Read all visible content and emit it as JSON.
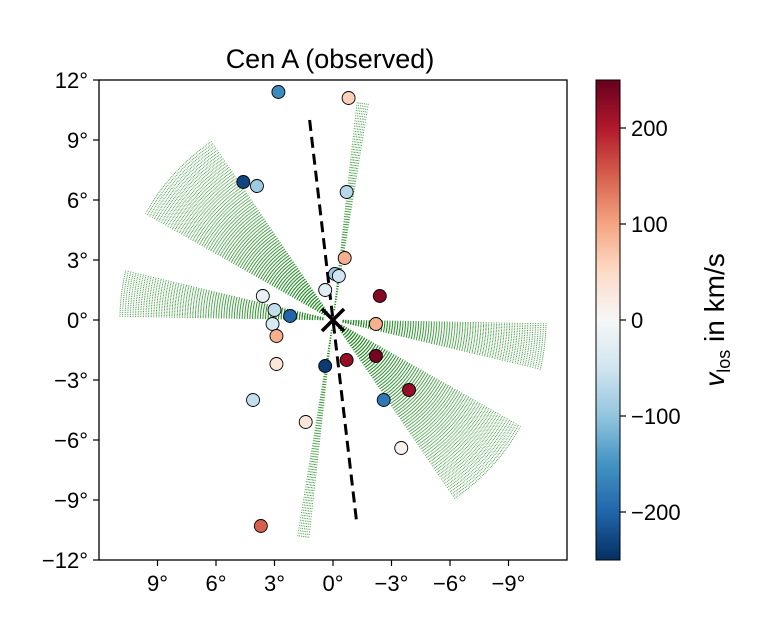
{
  "chart_data": {
    "type": "scatter",
    "title": "Cen A (observed)",
    "xlim": [
      12,
      -12
    ],
    "ylim": [
      -12,
      12
    ],
    "x_ticks": [
      {
        "value": 9,
        "label": "9°"
      },
      {
        "value": 6,
        "label": "6°"
      },
      {
        "value": 3,
        "label": "3°"
      },
      {
        "value": 0,
        "label": "0°"
      },
      {
        "value": -3,
        "label": "−3°"
      },
      {
        "value": -6,
        "label": "−6°"
      },
      {
        "value": -9,
        "label": "−9°"
      }
    ],
    "y_ticks": [
      {
        "value": 12,
        "label": "12°"
      },
      {
        "value": 9,
        "label": "9°"
      },
      {
        "value": 6,
        "label": "6°"
      },
      {
        "value": 3,
        "label": "3°"
      },
      {
        "value": 0,
        "label": "0°"
      },
      {
        "value": -3,
        "label": "−3°"
      },
      {
        "value": -6,
        "label": "−6°"
      },
      {
        "value": -9,
        "label": "−9°"
      },
      {
        "value": -12,
        "label": "−12°"
      }
    ],
    "grid": false,
    "colorbar": {
      "label_main": "v",
      "label_sub": "los",
      "label_rest": " in km/s",
      "vmin": -250,
      "vmax": 250,
      "colormap": "RdBu_r",
      "ticks": [
        {
          "value": 200,
          "label": "200"
        },
        {
          "value": 100,
          "label": "100"
        },
        {
          "value": 0,
          "label": "0"
        },
        {
          "value": -100,
          "label": "−100"
        },
        {
          "value": -200,
          "label": "−200"
        }
      ]
    },
    "center_marker": {
      "x": 0,
      "y": 0,
      "symbol": "×"
    },
    "major_axis_line": {
      "x": [
        1.2,
        -1.2
      ],
      "y": [
        10,
        -10
      ],
      "style": "dashed",
      "color": "#000000"
    },
    "fans": [
      {
        "center_angle_deg": 42,
        "half_width_deg": 13,
        "r_in": 0.5,
        "r_out": 11,
        "direction": "both",
        "color": "#228B22"
      },
      {
        "center_angle_deg": 7,
        "half_width_deg": 6,
        "r_in": 0.5,
        "r_out": 11,
        "direction": "both",
        "color": "#228B22"
      },
      {
        "center_angle_deg": 98,
        "half_width_deg": 1.5,
        "r_in": 0.5,
        "r_out": 11,
        "direction": "both",
        "color": "#228B22"
      }
    ],
    "points": [
      {
        "x": 2.8,
        "y": 11.4,
        "v": -160
      },
      {
        "x": -0.8,
        "y": 11.1,
        "v": 60
      },
      {
        "x": 4.6,
        "y": 6.9,
        "v": -230
      },
      {
        "x": 3.9,
        "y": 6.7,
        "v": -90
      },
      {
        "x": -0.7,
        "y": 6.4,
        "v": -70
      },
      {
        "x": -0.6,
        "y": 3.1,
        "v": 90
      },
      {
        "x": -0.1,
        "y": 2.3,
        "v": -90
      },
      {
        "x": -0.3,
        "y": 2.2,
        "v": -50
      },
      {
        "x": 0.4,
        "y": 1.5,
        "v": -30
      },
      {
        "x": 3.6,
        "y": 1.2,
        "v": -20
      },
      {
        "x": -2.4,
        "y": 1.2,
        "v": 230
      },
      {
        "x": 3.0,
        "y": 0.5,
        "v": -60
      },
      {
        "x": 2.2,
        "y": 0.2,
        "v": -200
      },
      {
        "x": 3.1,
        "y": -0.2,
        "v": -40
      },
      {
        "x": -2.2,
        "y": -0.2,
        "v": 90
      },
      {
        "x": 2.9,
        "y": -0.8,
        "v": 90
      },
      {
        "x": 0.4,
        "y": -2.3,
        "v": -240
      },
      {
        "x": -0.7,
        "y": -2.0,
        "v": 220
      },
      {
        "x": -2.2,
        "y": -1.8,
        "v": 240
      },
      {
        "x": 2.9,
        "y": -2.2,
        "v": 30
      },
      {
        "x": -3.9,
        "y": -3.5,
        "v": 220
      },
      {
        "x": 4.1,
        "y": -4.0,
        "v": -60
      },
      {
        "x": -2.6,
        "y": -4.0,
        "v": -180
      },
      {
        "x": 1.4,
        "y": -5.1,
        "v": 30
      },
      {
        "x": -3.5,
        "y": -6.4,
        "v": 10
      },
      {
        "x": 3.7,
        "y": -10.3,
        "v": 150
      }
    ]
  }
}
